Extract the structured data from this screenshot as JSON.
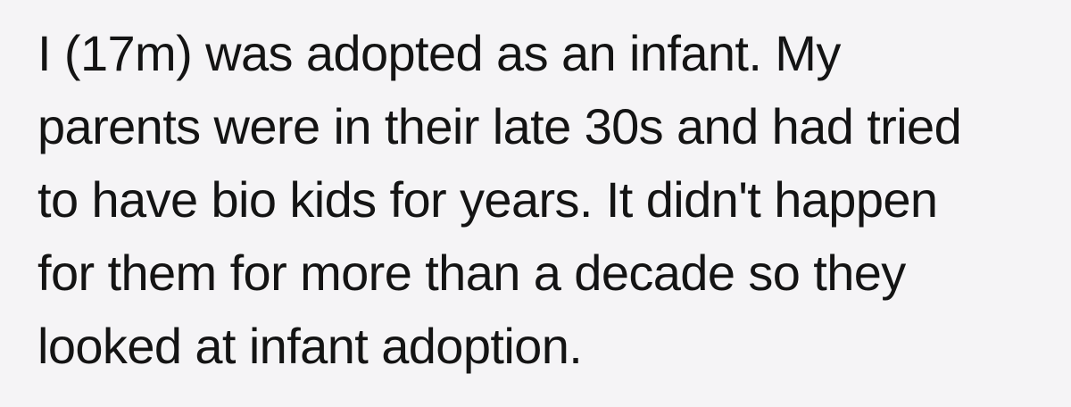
{
  "page": {
    "background_color": "#f5f4f6",
    "text_color": "#141414"
  },
  "paragraph": {
    "full_text": "I (17m) was adopted as an infant. My parents were in their late 30s and had tried to have bio kids for years. It didn't happen for them for more than a decade so they looked at infant adoption.",
    "lines": [
      "I (17m) was adopted as an infant. My",
      "parents were in their late 30s and had tried",
      "to have bio kids for years. It didn't happen",
      "for them for more than a decade so they",
      "looked at infant adoption."
    ]
  }
}
